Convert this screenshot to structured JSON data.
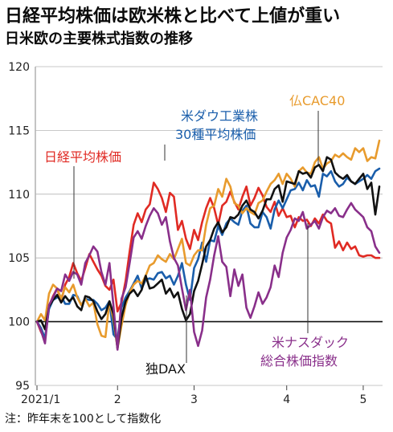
{
  "headline": "日経平均株価は欧米株と比べて上値が重い",
  "subtitle": "日米欧の主要株式指数の推移",
  "note": "注：昨年末を100として指数化",
  "chart_data": {
    "type": "line",
    "ylim": [
      95,
      120
    ],
    "yticks": [
      95,
      100,
      105,
      110,
      115,
      120
    ],
    "xticks": [
      "2021/1",
      "2",
      "3",
      "4",
      "5"
    ],
    "x_tick_index": [
      0,
      20,
      39,
      62,
      81
    ],
    "baseline": 100,
    "series": [
      {
        "name": "日経平均株価",
        "color": "#e02a23",
        "values": [
          100,
          99.2,
          98.6,
          101.2,
          102.0,
          102.6,
          101.6,
          102.9,
          103.5,
          104.6,
          103.8,
          103.2,
          104.2,
          105.3,
          104.7,
          104.1,
          103.6,
          102.8,
          102.5,
          103.3,
          100.8,
          101.5,
          103.2,
          105.5,
          107.6,
          108.5,
          107.8,
          108.8,
          109.2,
          110.9,
          110.4,
          109.7,
          108.6,
          110.1,
          109.8,
          107.2,
          107.9,
          106.5,
          105.7,
          107.2,
          106.4,
          107.8,
          108.9,
          109.7,
          108.9,
          107.6,
          109.1,
          109.4,
          110.2,
          109.4,
          108.8,
          109.8,
          110.6,
          109.1,
          109.7,
          110.5,
          109.9,
          109.0,
          108.6,
          109.4,
          108.3,
          108.9,
          108.2,
          108.3,
          107.4,
          108.2,
          107.9,
          108.0,
          107.5,
          108.1,
          107.7,
          108.4,
          107.9,
          107.7,
          105.8,
          106.3,
          105.6,
          106.2,
          105.7,
          105.9,
          105.2,
          105.1,
          105.2,
          105.2,
          105.0,
          105.0
        ]
      },
      {
        "name": "米ダウ工業株30種平均株価",
        "color": "#1a5eab",
        "values": [
          100,
          99.5,
          98.7,
          101.0,
          101.7,
          101.9,
          102.0,
          101.4,
          101.4,
          102.1,
          102.0,
          101.3,
          101.8,
          101.7,
          101.7,
          101.4,
          100.9,
          101.1,
          101.6,
          99.0,
          98.6,
          101.1,
          101.9,
          102.4,
          103.0,
          103.6,
          102.6,
          103.3,
          103.4,
          103.3,
          103.8,
          103.9,
          103.4,
          103.6,
          102.9,
          103.6,
          104.6,
          102.9,
          101.7,
          104.2,
          104.9,
          106.2,
          104.7,
          106.4,
          106.3,
          107.5,
          106.8,
          107.7,
          108.1,
          107.8,
          107.6,
          108.7,
          109.1,
          107.7,
          107.4,
          107.4,
          108.6,
          108.2,
          107.3,
          108.8,
          109.5,
          108.9,
          109.6,
          110.3,
          110.4,
          110.9,
          110.3,
          111.1,
          110.6,
          110.7,
          109.8,
          111.6,
          111.4,
          111.8,
          111.0,
          110.6,
          110.8,
          111.3,
          111.0,
          110.8,
          111.0,
          111.2,
          111.5,
          111.2,
          111.8,
          112.0
        ]
      },
      {
        "name": "仏CAC40",
        "color": "#e89b2d",
        "values": [
          100,
          100.6,
          100.1,
          102.2,
          102.9,
          102.6,
          101.8,
          102.7,
          102.3,
          102.9,
          101.9,
          101.3,
          101.8,
          101.2,
          101.5,
          99.8,
          98.9,
          98.8,
          101.6,
          100.2,
          97.9,
          99.7,
          101.3,
          102.3,
          102.9,
          103.2,
          103.0,
          103.6,
          104.4,
          104.6,
          105.2,
          104.9,
          104.7,
          105.3,
          104.9,
          105.7,
          106.5,
          104.6,
          104.4,
          105.2,
          105.6,
          105.6,
          107.6,
          108.9,
          109.1,
          110.4,
          109.8,
          111.2,
          110.6,
          109.3,
          109.1,
          108.5,
          108.9,
          108.6,
          108.4,
          109.3,
          109.5,
          110.2,
          110.8,
          111.1,
          111.6,
          110.8,
          111.6,
          111.2,
          110.6,
          111.8,
          112.1,
          111.7,
          111.6,
          112.5,
          112.9,
          112.0,
          112.4,
          112.6,
          113.1,
          112.9,
          113.2,
          112.9,
          112.7,
          113.6,
          113.3,
          113.6,
          112.6,
          112.9,
          112.8,
          114.2
        ]
      },
      {
        "name": "独DAX",
        "color": "#111111",
        "values": [
          100,
          100.1,
          99.4,
          101.2,
          101.7,
          102.1,
          101.5,
          102.0,
          101.6,
          101.9,
          101.2,
          100.9,
          102.0,
          101.9,
          101.6,
          100.8,
          100.2,
          100.6,
          101.6,
          100.6,
          97.9,
          100.3,
          101.6,
          102.2,
          102.5,
          102.0,
          102.5,
          103.6,
          102.6,
          102.7,
          103.0,
          103.3,
          102.2,
          102.6,
          101.9,
          102.3,
          101.0,
          100.1,
          100.6,
          102.4,
          103.2,
          104.5,
          105.9,
          106.4,
          107.3,
          107.8,
          107.0,
          107.4,
          108.2,
          108.1,
          108.4,
          109.1,
          109.5,
          108.8,
          108.6,
          108.1,
          108.7,
          109.6,
          109.6,
          110.4,
          110.7,
          109.4,
          111.0,
          110.9,
          110.8,
          111.8,
          111.6,
          111.7,
          111.3,
          112.1,
          112.3,
          111.8,
          112.9,
          112.7,
          111.7,
          111.4,
          111.2,
          111.5,
          111.0,
          110.8,
          111.2,
          111.6,
          110.4,
          110.9,
          108.4,
          110.6
        ]
      },
      {
        "name": "米ナスダック総合株価指数",
        "color": "#892f8a",
        "values": [
          100,
          99.3,
          98.3,
          101.3,
          101.9,
          102.6,
          102.4,
          103.7,
          103.2,
          103.9,
          103.7,
          102.9,
          104.6,
          105.2,
          105.9,
          105.5,
          103.9,
          102.9,
          104.6,
          101.2,
          97.8,
          101.8,
          102.7,
          104.6,
          106.6,
          107.1,
          106.5,
          107.5,
          108.3,
          108.9,
          108.5,
          107.6,
          108.2,
          106.3,
          105.0,
          104.4,
          102.6,
          100.9,
          102.5,
          99.2,
          98.1,
          99.3,
          101.9,
          103.3,
          105.2,
          106.7,
          104.7,
          104.3,
          102.0,
          104.1,
          102.8,
          103.7,
          101.1,
          100.3,
          101.2,
          102.3,
          101.4,
          101.9,
          102.7,
          104.4,
          103.5,
          105.4,
          106.6,
          107.2,
          108.1,
          107.9,
          108.6,
          107.3,
          107.6,
          107.9,
          107.3,
          108.2,
          108.7,
          108.5,
          108.9,
          108.3,
          108.2,
          108.8,
          109.3,
          108.8,
          108.5,
          108.2,
          107.4,
          107.1,
          105.9,
          105.4
        ]
      }
    ]
  },
  "labels": {
    "nikkei": "日経平均株価",
    "dow_line1": "米ダウ工業株",
    "dow_line2": "30種平均株価",
    "cac": "仏CAC40",
    "dax": "独DAX",
    "nasdaq_line1": "米ナスダック",
    "nasdaq_line2": "総合株価指数"
  }
}
